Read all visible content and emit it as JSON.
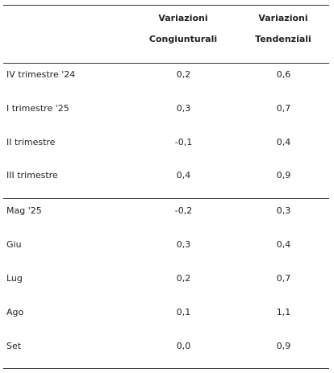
{
  "header": {
    "col1_line1": "Variazioni",
    "col1_line2": "Congiunturali",
    "col2_line1": "Variazioni",
    "col2_line2": "Tendenziali"
  },
  "rows": [
    {
      "label": "IV trimestre '24",
      "cong": "0,2",
      "tend": "0,6"
    },
    {
      "label": "I trimestre '25",
      "cong": "0,3",
      "tend": "0,7"
    },
    {
      "label": "II trimestre",
      "cong": "-0,1",
      "tend": "0,4"
    },
    {
      "label": "III trimestre",
      "cong": "0,4",
      "tend": "0,9"
    },
    {
      "label": "Mag '25",
      "cong": "-0,2",
      "tend": "0,3"
    },
    {
      "label": "Giu",
      "cong": "0,3",
      "tend": "0,4"
    },
    {
      "label": "Lug",
      "cong": "0,2",
      "tend": "0,7"
    },
    {
      "label": "Ago",
      "cong": "0,1",
      "tend": "1,1"
    },
    {
      "label": "Set",
      "cong": "0,0",
      "tend": "0,9"
    }
  ]
}
